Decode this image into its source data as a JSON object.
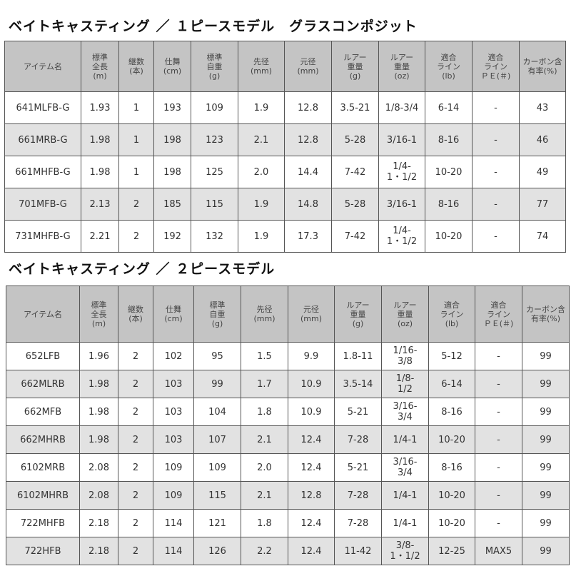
{
  "headers": [
    "アイテム名",
    "標準\n全長\n(m)",
    "継数\n(本)",
    "仕舞\n(cm)",
    "標準\n自重\n(g)",
    "先径\n(mm)",
    "元径\n(mm)",
    "ルアー\n重量\n(g)",
    "ルアー\n重量\n(oz)",
    "適合\nライン\n(lb)",
    "適合\nライン\nＰＥ(＃)",
    "カーボン含\n有率(%)"
  ],
  "table1": {
    "title": "ベイトキャスティング ／ １ピースモデル　グラスコンポジット",
    "rows": [
      [
        "641MLFB-G",
        "1.93",
        "1",
        "193",
        "109",
        "1.9",
        "12.8",
        "3.5-21",
        "1/8-3/4",
        "6-14",
        "-",
        "43"
      ],
      [
        "661MRB-G",
        "1.98",
        "1",
        "198",
        "123",
        "2.1",
        "12.8",
        "5-28",
        "3/16-1",
        "8-16",
        "-",
        "46"
      ],
      [
        "661MHFB-G",
        "1.98",
        "1",
        "198",
        "125",
        "2.0",
        "14.4",
        "7-42",
        "1/4-\n1・1/2",
        "10-20",
        "-",
        "49"
      ],
      [
        "701MFB-G",
        "2.13",
        "2",
        "185",
        "115",
        "1.9",
        "14.8",
        "5-28",
        "3/16-1",
        "8-16",
        "-",
        "77"
      ],
      [
        "731MHFB-G",
        "2.21",
        "2",
        "192",
        "132",
        "1.9",
        "17.3",
        "7-42",
        "1/4-\n1・1/2",
        "10-20",
        "-",
        "74"
      ]
    ]
  },
  "table2": {
    "title": "ベイトキャスティング ／ ２ピースモデル",
    "rows": [
      [
        "652LFB",
        "1.96",
        "2",
        "102",
        "95",
        "1.5",
        "9.9",
        "1.8-11",
        "1/16-\n3/8",
        "5-12",
        "-",
        "99"
      ],
      [
        "662MLRB",
        "1.98",
        "2",
        "103",
        "99",
        "1.7",
        "10.9",
        "3.5-14",
        "1/8-\n1/2",
        "6-14",
        "-",
        "99"
      ],
      [
        "662MFB",
        "1.98",
        "2",
        "103",
        "104",
        "1.8",
        "10.9",
        "5-21",
        "3/16-\n3/4",
        "8-16",
        "-",
        "99"
      ],
      [
        "662MHRB",
        "1.98",
        "2",
        "103",
        "107",
        "2.1",
        "12.4",
        "7-28",
        "1/4-1",
        "10-20",
        "-",
        "99"
      ],
      [
        "6102MRB",
        "2.08",
        "2",
        "109",
        "109",
        "2.0",
        "12.4",
        "5-21",
        "3/16-\n3/4",
        "8-16",
        "-",
        "99"
      ],
      [
        "6102MHRB",
        "2.08",
        "2",
        "109",
        "115",
        "2.1",
        "12.8",
        "7-28",
        "1/4-1",
        "10-20",
        "-",
        "99"
      ],
      [
        "722MHFB",
        "2.18",
        "2",
        "114",
        "121",
        "1.8",
        "12.4",
        "7-28",
        "1/4-1",
        "10-20",
        "-",
        "99"
      ],
      [
        "722HFB",
        "2.18",
        "2",
        "114",
        "126",
        "2.2",
        "12.4",
        "11-42",
        "3/8-\n1・1/2",
        "12-25",
        "MAX5",
        "99"
      ]
    ]
  },
  "colors": {
    "header_bg": "#c4c4c4",
    "alt_row_bg": "#e2e2e2",
    "border": "#555555"
  }
}
